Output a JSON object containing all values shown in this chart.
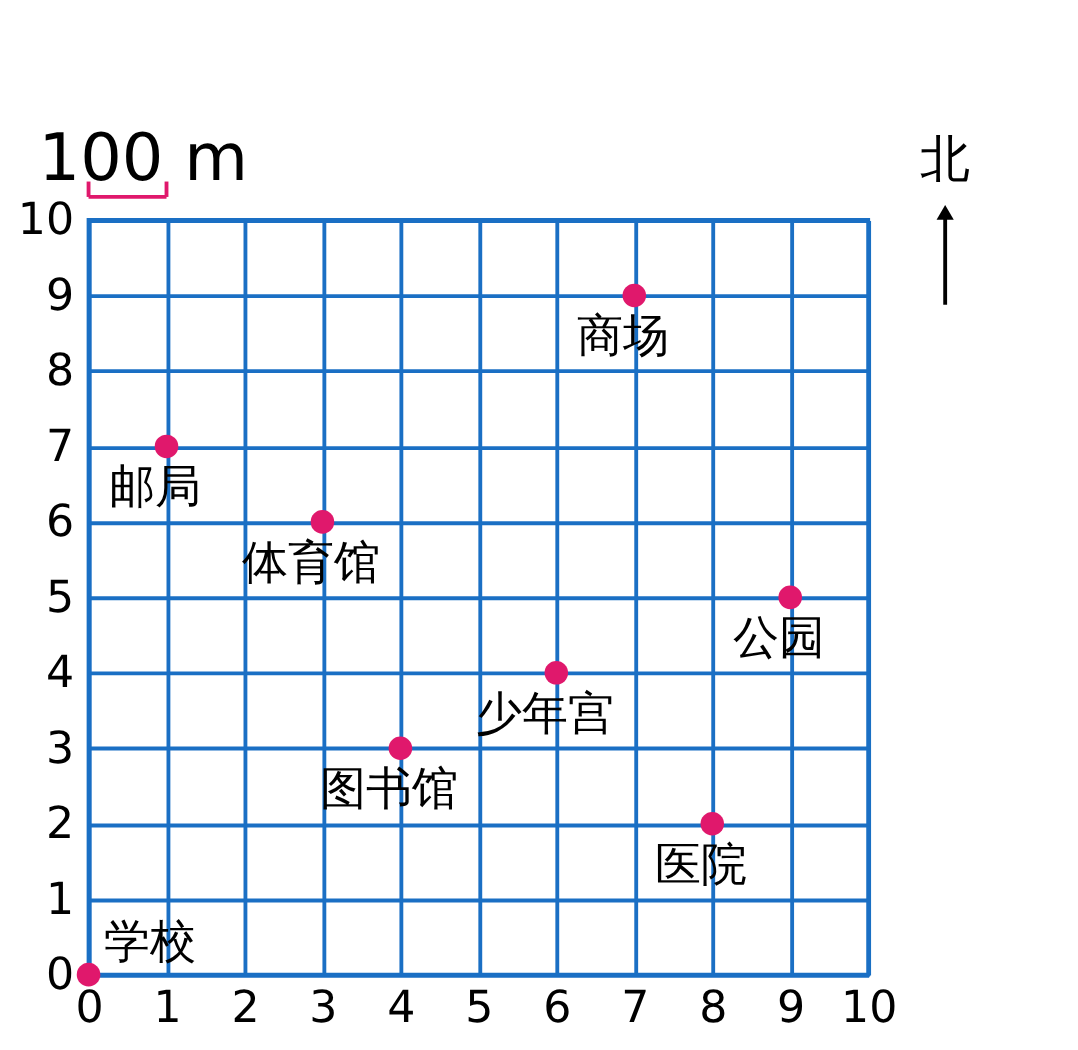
{
  "chart_data": {
    "type": "scatter",
    "x": [
      0,
      1,
      3,
      7,
      9,
      6,
      4,
      8
    ],
    "series": [
      {
        "color": "#e0186c",
        "values": [
          0,
          7,
          6,
          9,
          5,
          4,
          3,
          2
        ]
      }
    ],
    "xlim": [
      0,
      10
    ],
    "ylim": [
      0,
      10
    ],
    "xticks": [
      0,
      1,
      2,
      3,
      4,
      5,
      6,
      7,
      8,
      9,
      10
    ],
    "yticks": [
      0,
      1,
      2,
      3,
      4,
      5,
      6,
      7,
      8,
      9,
      10
    ],
    "grid": true,
    "marker": "circle",
    "annotations": [
      {
        "text": "学校",
        "x": 0,
        "y": 0
      },
      {
        "text": "邮局",
        "x": 1,
        "y": 7
      },
      {
        "text": "体育馆",
        "x": 3,
        "y": 6
      },
      {
        "text": "商场",
        "x": 7,
        "y": 9
      },
      {
        "text": "公园",
        "x": 9,
        "y": 5
      },
      {
        "text": "少年宫",
        "x": 6,
        "y": 4
      },
      {
        "text": "图书馆",
        "x": 4,
        "y": 3
      },
      {
        "text": "医院",
        "x": 8,
        "y": 2
      },
      "100 m",
      "北"
    ]
  }
}
